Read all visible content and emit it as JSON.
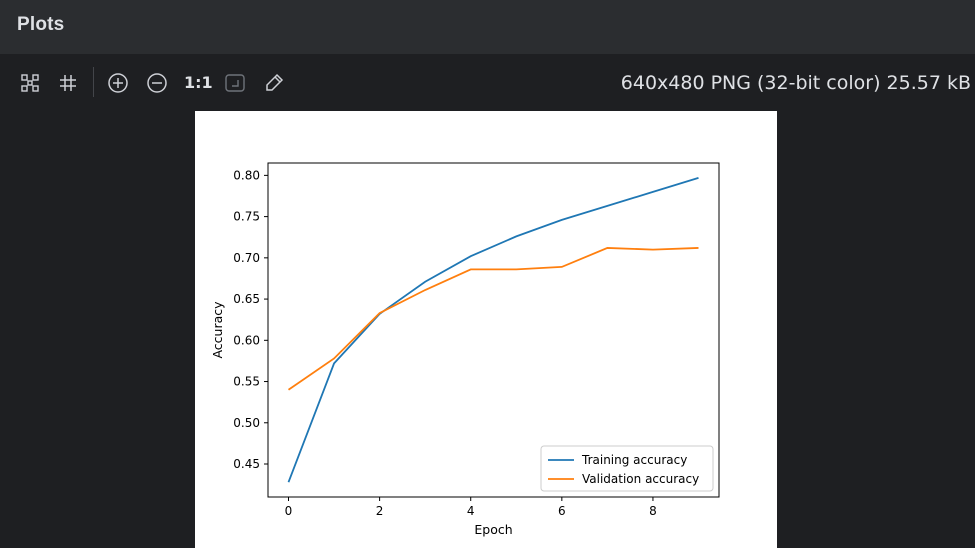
{
  "panel": {
    "title": "Plots"
  },
  "toolbar": {
    "icons": [
      "fit-screen-icon",
      "grid-icon",
      "zoom-in-icon",
      "zoom-out-icon",
      "actual-size-icon",
      "fit-zoom-icon",
      "color-picker-icon"
    ],
    "actual_size_label": "1:1",
    "image_info": "640x480 PNG (32-bit color) 25.57 kB"
  },
  "chart_data": {
    "type": "line",
    "title": "",
    "xlabel": "Epoch",
    "ylabel": "Accuracy",
    "x": [
      0,
      1,
      2,
      3,
      4,
      5,
      6,
      7,
      8,
      9
    ],
    "xlim": [
      -0.45,
      9.45
    ],
    "ylim": [
      0.41,
      0.815
    ],
    "xticks": [
      0,
      2,
      4,
      6,
      8
    ],
    "xtick_labels": [
      "0",
      "2",
      "4",
      "6",
      "8"
    ],
    "yticks": [
      0.45,
      0.5,
      0.55,
      0.6,
      0.65,
      0.7,
      0.75,
      0.8
    ],
    "ytick_labels": [
      "0.45",
      "0.50",
      "0.55",
      "0.60",
      "0.65",
      "0.70",
      "0.75",
      "0.80"
    ],
    "grid": false,
    "legend_position": "bottom-right",
    "series": [
      {
        "name": "Training accuracy",
        "color": "#1f77b4",
        "values": [
          0.428,
          0.572,
          0.632,
          0.671,
          0.702,
          0.726,
          0.746,
          0.763,
          0.78,
          0.797
        ]
      },
      {
        "name": "Validation accuracy",
        "color": "#ff7f0e",
        "values": [
          0.54,
          0.578,
          0.633,
          0.661,
          0.686,
          0.686,
          0.689,
          0.712,
          0.71,
          0.712
        ]
      }
    ]
  }
}
